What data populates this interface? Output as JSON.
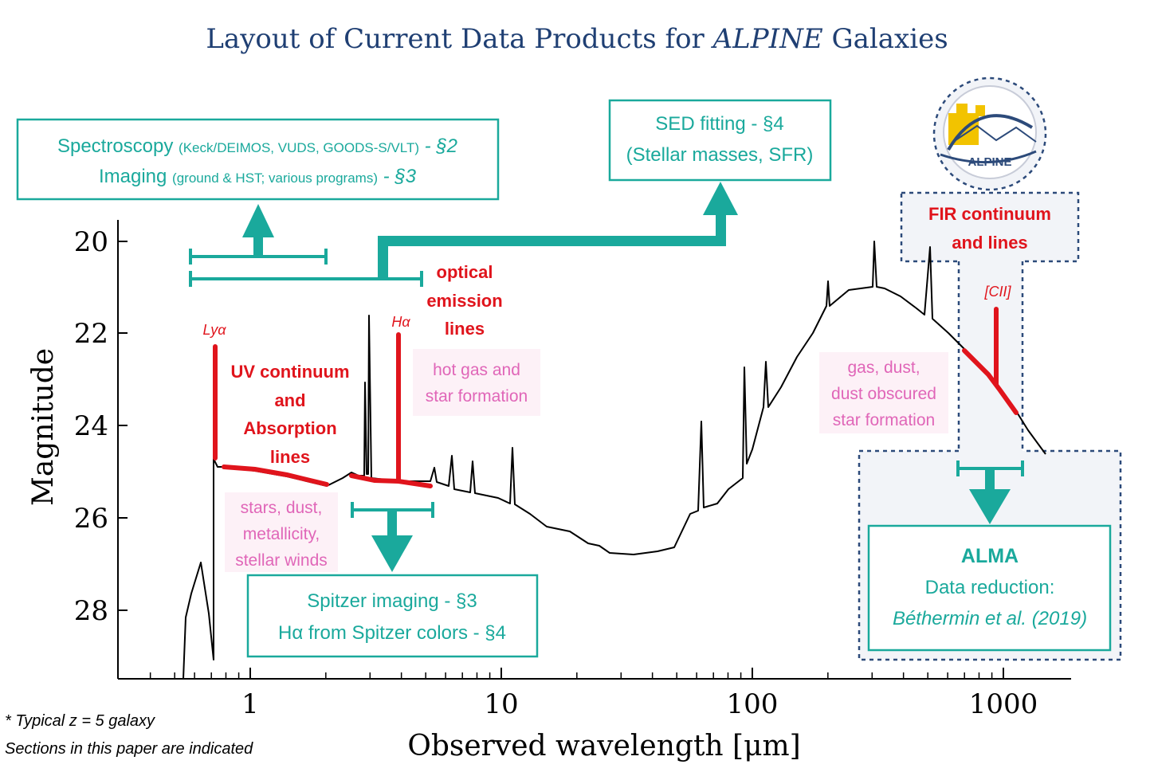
{
  "title": "Layout of Current Data Products for ALPINE Galaxies",
  "title_plain": "Layout of Current Data Products for ",
  "title_italic": "ALPINE",
  "title_end": " Galaxies",
  "axes": {
    "xlabel": "Observed wavelength [μm]",
    "ylabel": "Magnitude",
    "x_ticks": [
      "1",
      "10",
      "100",
      "1000"
    ],
    "y_ticks": [
      "20",
      "22",
      "24",
      "26",
      "28"
    ],
    "x_scale": "log",
    "y_inverted": true
  },
  "boxes": {
    "spectroscopy": {
      "line1_main": "Spectroscopy",
      "line1_small": "(Keck/DEIMOS, VUDS, GOODS-S/VLT)",
      "line1_ref": "- §2",
      "line2_main": "Imaging",
      "line2_small": "(ground & HST; various programs)",
      "line2_ref": "- §3"
    },
    "sed": {
      "line1": "SED fitting - §4",
      "line2": "(Stellar masses, SFR)"
    },
    "spitzer": {
      "line1": "Spitzer imaging - §3",
      "line2": "Hα from Spitzer colors - §4"
    },
    "alma": {
      "line1": "ALMA",
      "line2": "Data reduction:",
      "line3": "Béthermin et al. (2019)"
    }
  },
  "red_labels": {
    "lya": "Lyα",
    "ha": "Hα",
    "cii": "[CII]",
    "uv": [
      "UV continuum",
      "and",
      "Absorption",
      "lines"
    ],
    "optical": [
      "optical",
      "emission",
      "lines"
    ],
    "fir": [
      "FIR continuum",
      "and lines"
    ]
  },
  "pink_labels": {
    "stars": [
      "stars, dust,",
      "metallicity,",
      "stellar winds"
    ],
    "hotgas": [
      "hot gas and",
      "star formation"
    ],
    "dust": [
      "gas, dust,",
      "dust obscured",
      "star formation"
    ]
  },
  "logo_text": "ALPINE",
  "footnotes": [
    "* Typical z = 5 galaxy",
    "Sections in this paper are indicated"
  ],
  "colors": {
    "teal": "#1aa99c",
    "red": "#e0141c",
    "pink": "#e066b8",
    "title": "#1f3f73",
    "dashed": "#2c4a7a"
  }
}
